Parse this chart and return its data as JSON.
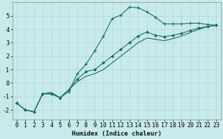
{
  "xlabel": "Humidex (Indice chaleur)",
  "background_color": "#c8eaea",
  "grid_color": "#b0d4d4",
  "line_color": "#1a6b6b",
  "xlim": [
    -0.5,
    23.5
  ],
  "ylim": [
    -2.7,
    6.0
  ],
  "yticks": [
    -2,
    -1,
    0,
    1,
    2,
    3,
    4,
    5
  ],
  "xticks": [
    0,
    1,
    2,
    3,
    4,
    5,
    6,
    7,
    8,
    9,
    10,
    11,
    12,
    13,
    14,
    15,
    16,
    17,
    18,
    19,
    20,
    21,
    22,
    23
  ],
  "curve1_x": [
    0,
    1,
    2,
    3,
    4,
    5,
    6,
    7,
    8,
    9,
    10,
    11,
    12,
    13,
    14,
    15,
    16,
    17,
    18,
    19,
    20,
    21,
    22,
    23
  ],
  "curve1_y": [
    -1.5,
    -2.0,
    -2.15,
    -0.8,
    -0.8,
    -1.1,
    -0.65,
    0.7,
    1.4,
    2.4,
    3.5,
    4.8,
    5.05,
    5.65,
    5.6,
    5.3,
    4.9,
    4.4,
    4.4,
    4.4,
    4.45,
    4.45,
    4.35,
    4.3
  ],
  "curve2_x": [
    0,
    1,
    2,
    3,
    4,
    5,
    6,
    7,
    8,
    9,
    10,
    11,
    12,
    13,
    14,
    15,
    16,
    17,
    18,
    19,
    20,
    21,
    22,
    23
  ],
  "curve2_y": [
    -1.5,
    -2.0,
    -2.15,
    -0.8,
    -0.8,
    -1.1,
    -0.5,
    0.3,
    0.85,
    1.0,
    1.5,
    2.0,
    2.5,
    3.0,
    3.5,
    3.8,
    3.55,
    3.45,
    3.55,
    3.7,
    3.9,
    4.1,
    4.2,
    4.3
  ],
  "curve3_x": [
    0,
    1,
    2,
    3,
    4,
    5,
    6,
    7,
    8,
    9,
    10,
    11,
    12,
    13,
    14,
    15,
    16,
    17,
    18,
    19,
    20,
    21,
    22,
    23
  ],
  "curve3_y": [
    -1.5,
    -2.0,
    -2.15,
    -0.8,
    -0.7,
    -1.1,
    -0.5,
    0.1,
    0.5,
    0.7,
    1.0,
    1.5,
    2.0,
    2.5,
    3.0,
    3.35,
    3.25,
    3.15,
    3.3,
    3.5,
    3.75,
    4.0,
    4.2,
    4.3
  ],
  "tick_fontsize": 6.0,
  "xlabel_fontsize": 6.5
}
